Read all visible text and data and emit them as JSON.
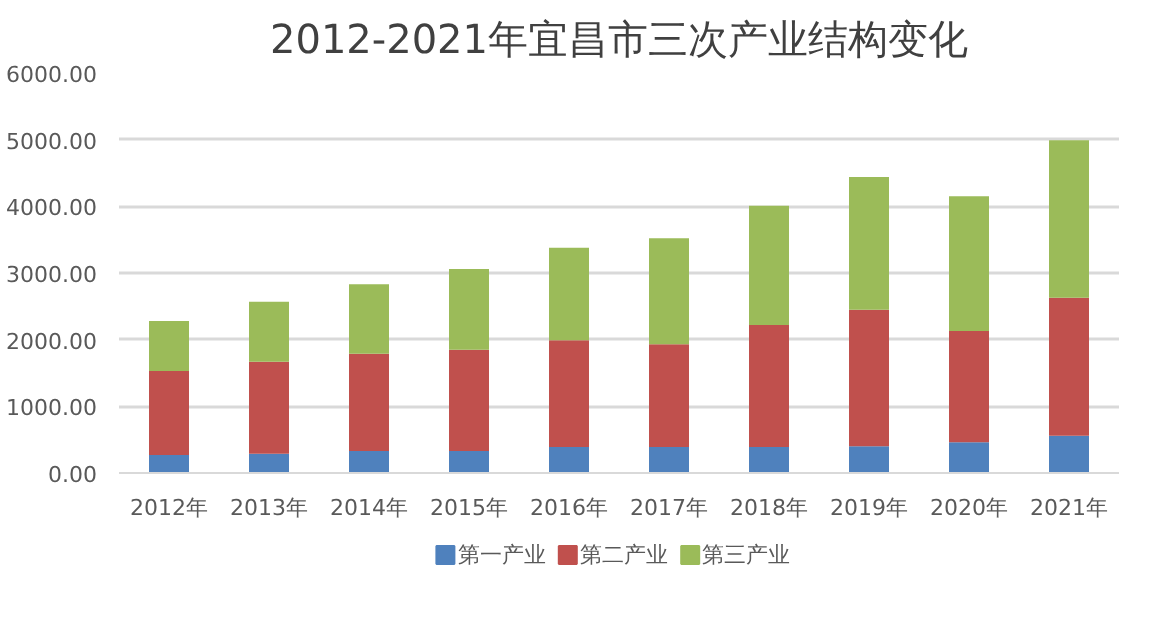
{
  "chart_data": {
    "type": "bar",
    "title": "2012-2021年宜昌市三次产业结构变化",
    "stacked": true,
    "categories": [
      "2012年",
      "2013年",
      "2014年",
      "2015年",
      "2016年",
      "2017年",
      "2018年",
      "2019年",
      "2020年",
      "2021年"
    ],
    "series": [
      {
        "name": "第一产业",
        "color": "#4f81bd",
        "values": [
          270,
          290,
          330,
          330,
          390,
          390,
          390,
          400,
          460,
          560
        ]
      },
      {
        "name": "第二产业",
        "color": "#c0504d",
        "values": [
          1260,
          1380,
          1460,
          1520,
          1600,
          1540,
          1830,
          2050,
          1670,
          2070
        ]
      },
      {
        "name": "第三产业",
        "color": "#9bbb59",
        "values": [
          750,
          900,
          1040,
          1210,
          1390,
          1590,
          1790,
          1990,
          2020,
          2360
        ]
      }
    ],
    "ylim": [
      0,
      6000
    ],
    "yticks": [
      {
        "value": 0,
        "label": "0.00"
      },
      {
        "value": 1000,
        "label": "1000.00"
      },
      {
        "value": 2000,
        "label": "2000.00"
      },
      {
        "value": 3000,
        "label": "3000.00"
      },
      {
        "value": 4000,
        "label": "4000.00"
      },
      {
        "value": 5000,
        "label": "5000.00"
      },
      {
        "value": 6000,
        "label": "6000.00"
      }
    ],
    "grid": "y",
    "legend": "bottom"
  }
}
